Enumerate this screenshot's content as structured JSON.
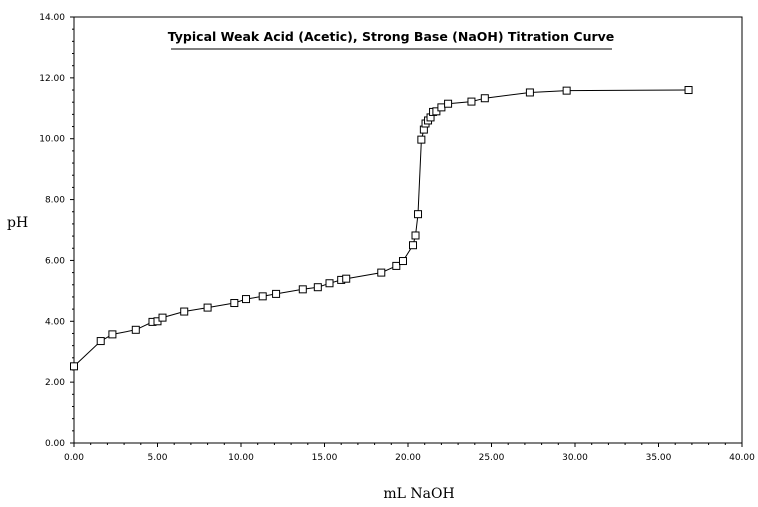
{
  "chart_data": {
    "type": "scatter",
    "title": "Typical Weak Acid (Acetic), Strong Base (NaOH) Titration Curve",
    "xlabel": "mL NaOH",
    "ylabel": "pH",
    "xlim": [
      0,
      40
    ],
    "ylim": [
      0,
      14
    ],
    "xticks": [
      "0.00",
      "5.00",
      "10.00",
      "15.00",
      "20.00",
      "25.00",
      "30.00",
      "35.00",
      "40.00"
    ],
    "yticks": [
      "0.00",
      "2.00",
      "4.00",
      "6.00",
      "8.00",
      "10.00",
      "12.00",
      "14.00"
    ],
    "grid": false,
    "legend": "none",
    "marker": "open-square",
    "line_color": "#000000",
    "series": [
      {
        "points": [
          [
            0.0,
            2.52
          ],
          [
            1.6,
            3.35
          ],
          [
            2.3,
            3.57
          ],
          [
            3.7,
            3.72
          ],
          [
            4.7,
            3.98
          ],
          [
            5.0,
            4.0
          ],
          [
            5.3,
            4.12
          ],
          [
            6.6,
            4.32
          ],
          [
            8.0,
            4.45
          ],
          [
            9.6,
            4.6
          ],
          [
            10.3,
            4.73
          ],
          [
            11.3,
            4.82
          ],
          [
            12.1,
            4.9
          ],
          [
            13.7,
            5.05
          ],
          [
            14.6,
            5.12
          ],
          [
            15.3,
            5.25
          ],
          [
            16.0,
            5.36
          ],
          [
            16.3,
            5.4
          ],
          [
            18.4,
            5.6
          ],
          [
            19.3,
            5.82
          ],
          [
            19.7,
            5.98
          ],
          [
            20.3,
            6.5
          ],
          [
            20.45,
            6.82
          ],
          [
            20.6,
            7.52
          ],
          [
            20.8,
            9.97
          ],
          [
            20.95,
            10.3
          ],
          [
            21.05,
            10.5
          ],
          [
            21.2,
            10.6
          ],
          [
            21.35,
            10.7
          ],
          [
            21.5,
            10.88
          ],
          [
            21.7,
            10.9
          ],
          [
            22.0,
            11.03
          ],
          [
            22.4,
            11.15
          ],
          [
            23.8,
            11.22
          ],
          [
            24.6,
            11.33
          ],
          [
            27.3,
            11.52
          ],
          [
            29.5,
            11.58
          ],
          [
            36.8,
            11.6
          ]
        ]
      }
    ]
  }
}
